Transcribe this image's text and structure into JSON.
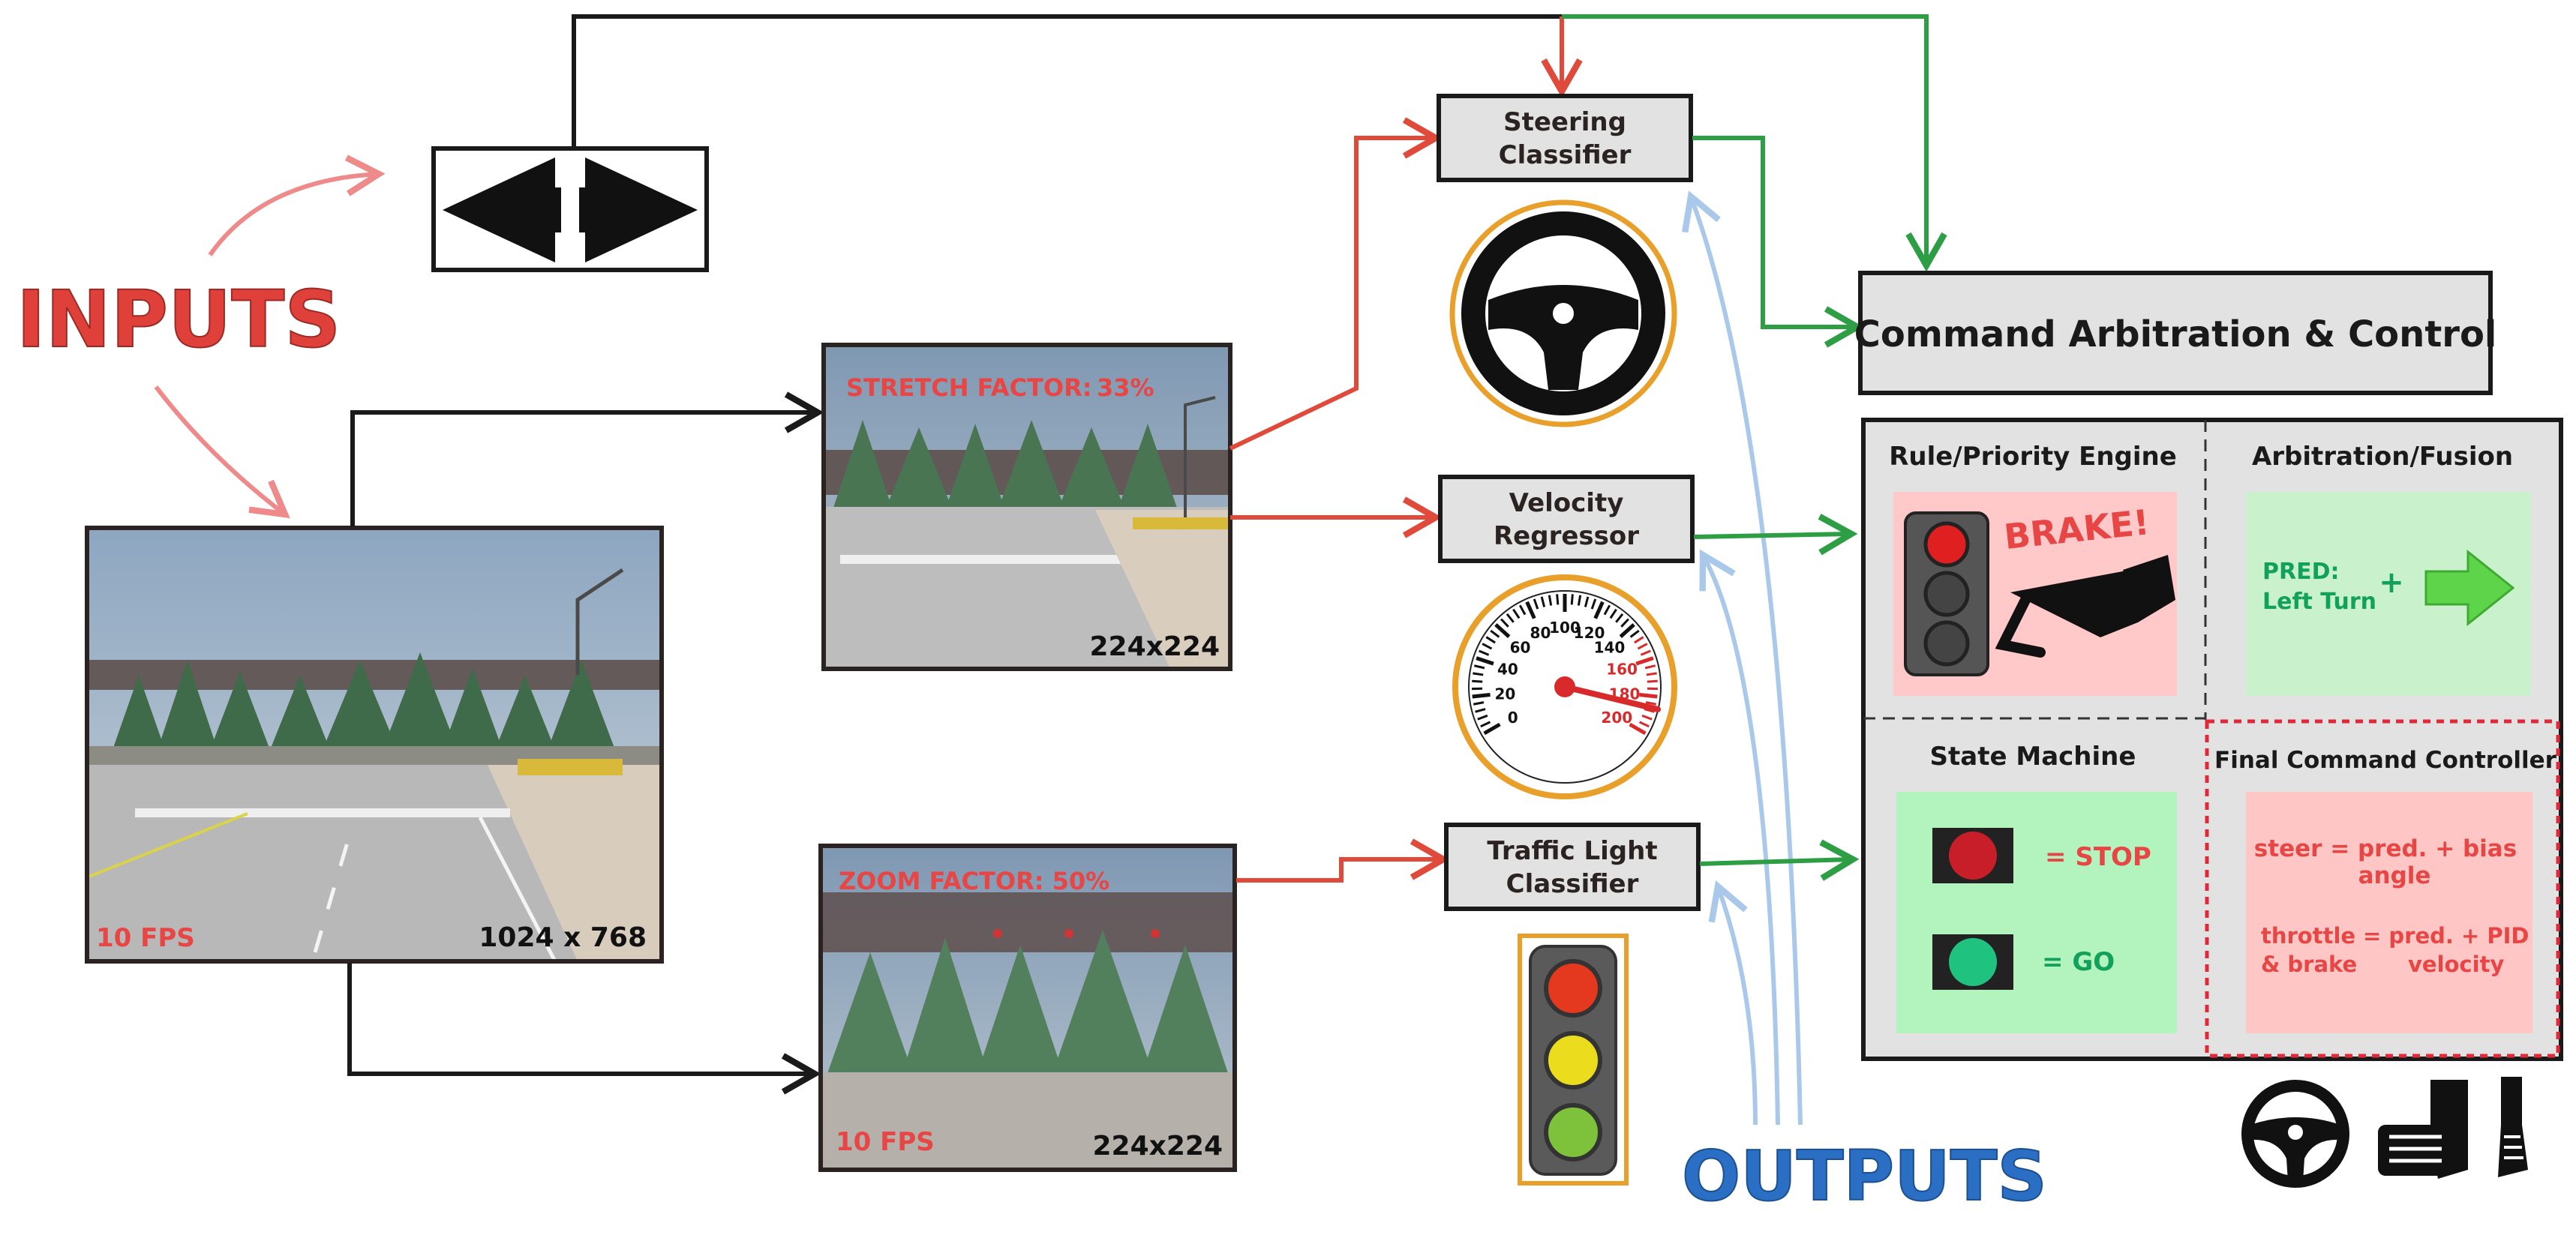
{
  "inputs_label": "INPUTS",
  "outputs_label": "OUTPUTS",
  "camera": {
    "fps": "10 FPS",
    "resolution": "1024 x 768"
  },
  "stretch_view": {
    "factor_label": "STRETCH FACTOR:",
    "factor_value": "33%",
    "resolution": "224x224"
  },
  "zoom_view": {
    "factor_label": "ZOOM FACTOR: 50%",
    "fps": "10 FPS",
    "resolution": "224x224"
  },
  "models": {
    "steering": [
      "Steering",
      "Classifier"
    ],
    "velocity": [
      "Velocity",
      "Regressor"
    ],
    "traffic_light": [
      "Traffic Light",
      "Classifier"
    ]
  },
  "speedometer_ticks": [
    "0",
    "20",
    "40",
    "60",
    "80",
    "100",
    "120",
    "140",
    "160",
    "180",
    "200"
  ],
  "control": {
    "title": "Command Arbitration & Control",
    "rule_engine": {
      "title": "Rule/Priority Engine",
      "action": "BRAKE!"
    },
    "fusion": {
      "title": "Arbitration/Fusion",
      "pred_line1": "PRED:",
      "pred_line2": "Left Turn",
      "plus": "+"
    },
    "state_machine": {
      "title": "State Machine",
      "stop": "= STOP",
      "go": "= GO"
    },
    "final": {
      "title": "Final Command Controller",
      "steer_left": "steer = pred. + bias",
      "steer_right": "angle",
      "throttle_line1": "throttle",
      "throttle_line2": "& brake",
      "throttle_eq1": "= pred. + PID",
      "throttle_eq2": "velocity"
    }
  },
  "colors": {
    "red_arrow": "#e04a3a",
    "green_arrow": "#2e9e44",
    "blue_arrow": "#a9c8ea",
    "black_line": "#1a1a1a",
    "inputs_red": "#e0403a",
    "outputs_blue": "#2a6fc4",
    "box_gray": "#e2e2e2",
    "rule_pink": "#ffc9c9",
    "fusion_green": "#c9f2cc",
    "state_green": "#b3f3bd",
    "final_pink": "#ffc6c6",
    "label_red": "#e84545",
    "label_green": "#12a15a"
  }
}
